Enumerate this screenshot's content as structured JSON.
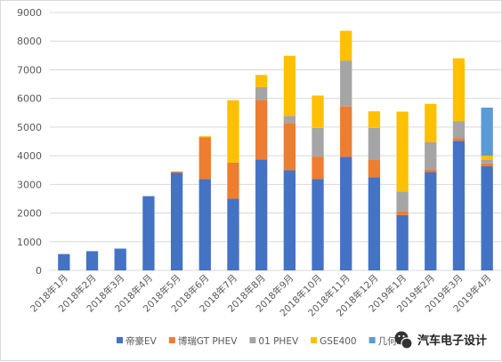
{
  "chart_data": {
    "type": "bar",
    "stacked": true,
    "categories": [
      "2018年1月",
      "2018年2月",
      "2018年3月",
      "2018年4月",
      "2018年5月",
      "2018年6月",
      "2018年7月",
      "2018年8月",
      "2018年9月",
      "2018年10月",
      "2018年11月",
      "2018年12月",
      "2019年1月",
      "2019年2月",
      "2019年3月",
      "2019年4月"
    ],
    "series": [
      {
        "name": "帝豪EV",
        "color": "#4472c4",
        "values": [
          570,
          670,
          760,
          2590,
          3400,
          3190,
          2500,
          3870,
          3500,
          3190,
          3960,
          3250,
          1930,
          3430,
          4520,
          3630
        ]
      },
      {
        "name": "博瑞GT PHEV",
        "color": "#ed7d31",
        "values": [
          0,
          0,
          0,
          0,
          50,
          1450,
          1260,
          2080,
          1640,
          780,
          1760,
          620,
          120,
          90,
          90,
          100
        ]
      },
      {
        "name": "01 PHEV",
        "color": "#a5a5a5",
        "values": [
          0,
          0,
          0,
          0,
          0,
          0,
          0,
          450,
          250,
          1000,
          1600,
          1100,
          700,
          950,
          600,
          120
        ]
      },
      {
        "name": "GSE400",
        "color": "#ffc000",
        "values": [
          0,
          0,
          0,
          0,
          0,
          40,
          2180,
          420,
          2100,
          1130,
          1040,
          580,
          2790,
          1340,
          2190,
          150
        ]
      },
      {
        "name": "几何A",
        "color": "#5b9bd5",
        "values": [
          0,
          0,
          0,
          0,
          0,
          0,
          0,
          0,
          0,
          0,
          0,
          0,
          0,
          0,
          0,
          1680
        ]
      }
    ],
    "xlabel": "",
    "ylabel": "",
    "ylim": [
      0,
      9000
    ],
    "yticks": [
      0,
      1000,
      2000,
      3000,
      4000,
      5000,
      6000,
      7000,
      8000,
      9000
    ],
    "grid": true,
    "legend_position": "bottom"
  },
  "watermark": {
    "text": "汽车电子设计",
    "icon": "wechat-logo-icon"
  }
}
